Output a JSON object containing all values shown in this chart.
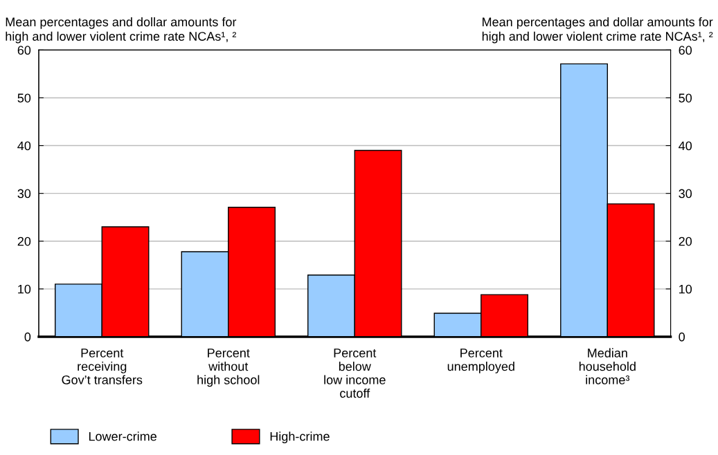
{
  "chart_data": {
    "type": "bar",
    "ylabel": "Mean percentages and dollar amounts for\nhigh and lower violent crime rate NCAs¹, ²",
    "y2label": "Mean percentages and dollar amounts for\nhigh and lower violent crime rate NCAs¹, ²",
    "categories": [
      "Percent\nreceiving\nGov’t transfers",
      "Percent\nwithout\nhigh school",
      "Percent\nbelow\nlow income\ncutoff",
      "Percent\nunemployed",
      "Median\nhousehold\nincome³"
    ],
    "series": [
      {
        "name": "Lower-crime",
        "color": "#99ccff",
        "values": [
          11.0,
          17.8,
          12.9,
          4.9,
          57.1
        ]
      },
      {
        "name": "High-crime",
        "color": "#ff0000",
        "values": [
          23.0,
          27.1,
          39.0,
          8.8,
          27.8
        ]
      }
    ],
    "ylim": [
      0,
      60
    ],
    "yticks": [
      0,
      10,
      20,
      30,
      40,
      50,
      60
    ],
    "y2lim": [
      0,
      60
    ],
    "y2ticks": [
      0,
      10,
      20,
      30,
      40,
      50,
      60
    ],
    "grid": "y",
    "legend": "bottom left"
  }
}
